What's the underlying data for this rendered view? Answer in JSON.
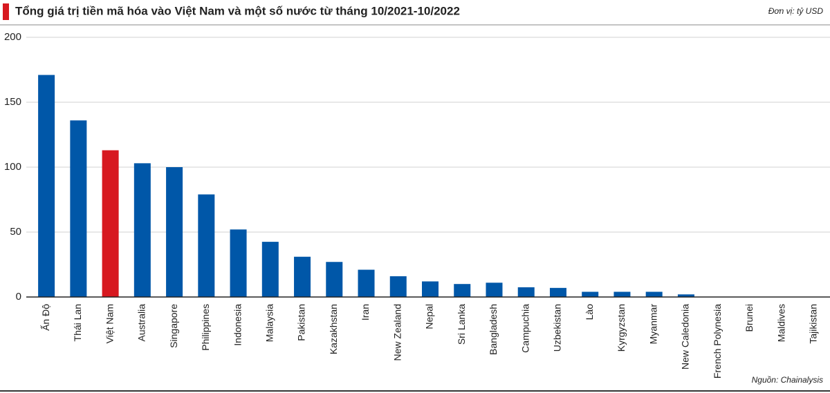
{
  "chart_data": {
    "type": "bar",
    "title": "Tổng giá trị tiền mã hóa vào Việt Nam và một số nước từ tháng 10/2021-10/2022",
    "unit_note": "Đơn vị: tỷ USD",
    "source": "Nguồn: Chainalysis",
    "categories": [
      "Ấn Độ",
      "Thái Lan",
      "Việt Nam",
      "Australia",
      "Singapore",
      "Philippines",
      "Indonesia",
      "Malaysia",
      "Pakistan",
      "Kazakhstan",
      "Iran",
      "New Zealand",
      "Nepal",
      "Sri Lanka",
      "Bangladesh",
      "Campuchia",
      "Uzbekistan",
      "Lào",
      "Kyrgyzstan",
      "Myanmar",
      "New Caledonia",
      "French Polynesia",
      "Brunei",
      "Maldives",
      "Tajikistan"
    ],
    "values": [
      171,
      136,
      113,
      103,
      100,
      79,
      52,
      42.5,
      31,
      27,
      21,
      16,
      12,
      10,
      11,
      7.5,
      7,
      4,
      4,
      4,
      2,
      0,
      0,
      0,
      0
    ],
    "colors": [
      "#0057a8",
      "#0057a8",
      "#d71920",
      "#0057a8",
      "#0057a8",
      "#0057a8",
      "#0057a8",
      "#0057a8",
      "#0057a8",
      "#0057a8",
      "#0057a8",
      "#0057a8",
      "#0057a8",
      "#0057a8",
      "#0057a8",
      "#0057a8",
      "#0057a8",
      "#0057a8",
      "#0057a8",
      "#0057a8",
      "#0057a8",
      "#0057a8",
      "#0057a8",
      "#0057a8",
      "#0057a8"
    ],
    "ylim": [
      0,
      200
    ],
    "yticks": [
      0,
      50,
      100,
      150,
      200
    ],
    "grid": true
  }
}
